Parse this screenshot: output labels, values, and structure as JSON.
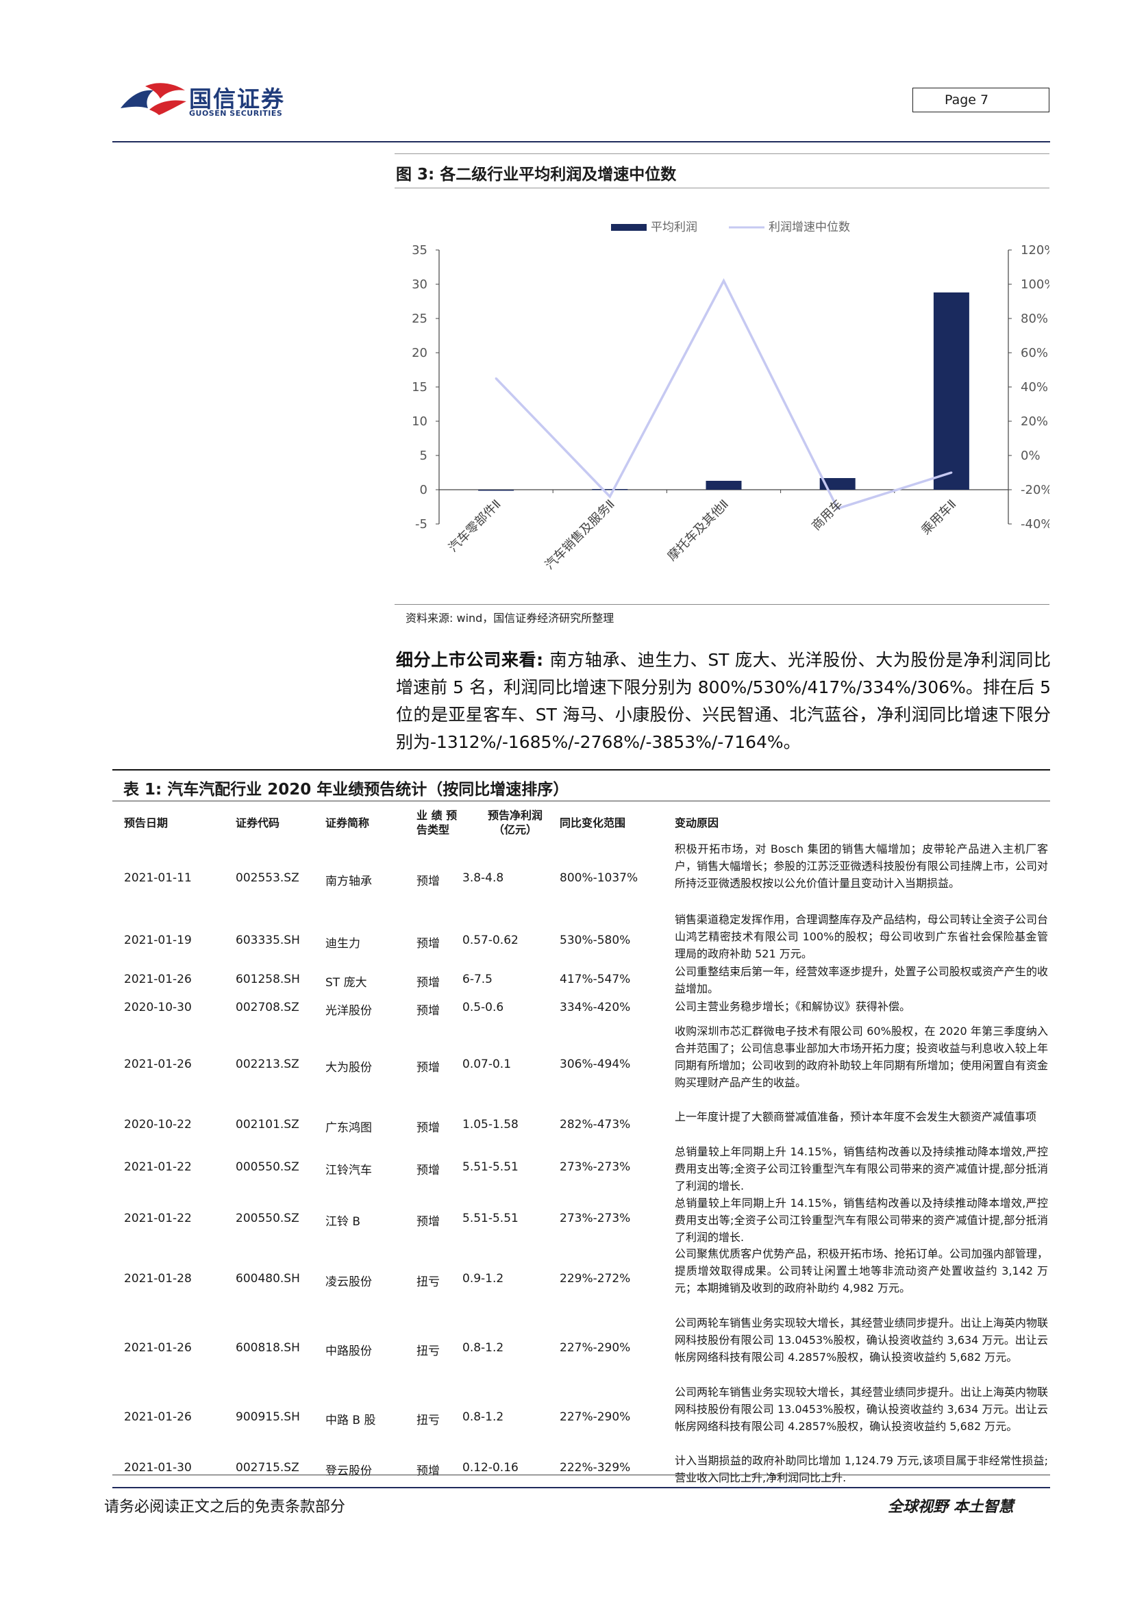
{
  "header": {
    "logo_cn": "国信证券",
    "logo_en": "GUOSEN SECURITIES",
    "page_label": "Page  7"
  },
  "figure": {
    "title": "图 3:  各二级行业平均利润及增速中位数",
    "source": "资料来源: wind，国信证券经济研究所整理"
  },
  "chart_data": {
    "type": "bar",
    "categories": [
      "汽车零部件Ⅱ",
      "汽车销售及服务Ⅱ",
      "摩托车及其他Ⅱ",
      "商用车",
      "乘用车Ⅱ"
    ],
    "series": [
      {
        "name": "平均利润",
        "type": "bar",
        "axis": "left",
        "values": [
          -0.1,
          0.1,
          1.3,
          1.7,
          28.8
        ]
      },
      {
        "name": "利润增速中位数",
        "type": "line",
        "axis": "right",
        "values": [
          0.45,
          -0.24,
          1.02,
          -0.31,
          -0.1
        ]
      }
    ],
    "y_left": {
      "ticks": [
        "35",
        "30",
        "25",
        "20",
        "15",
        "10",
        "5",
        "0",
        "-5"
      ],
      "ylim": [
        -5,
        35
      ]
    },
    "y_right": {
      "ticks": [
        "120%",
        "100%",
        "80%",
        "60%",
        "40%",
        "20%",
        "0%",
        "-20%",
        "-40%"
      ],
      "ylim": [
        -0.4,
        1.2
      ]
    },
    "legend": "top",
    "grid": false,
    "colors": {
      "bar": "#1a2a5e",
      "line": "#c6c9f2"
    }
  },
  "paragraph": {
    "lead": "细分上市公司来看: ",
    "body": "南方轴承、迪生力、ST 庞大、光洋股份、大为股份是净利润同比增速前 5 名，利润同比增速下限分别为 800%/530%/417%/334%/306%。排在后 5 位的是亚星客车、ST 海马、小康股份、兴民智通、北汽蓝谷，净利润同比增速下限分别为-1312%/-1685%/-2768%/-3853%/-7164%。"
  },
  "table": {
    "title": "表 1:  汽车汽配行业 2020 年业绩预告统计（按同比增速排序）",
    "headers": [
      "预告日期",
      "证券代码",
      "证券简称",
      "业 绩 预\n告类型",
      "预告净利润\n（亿元）",
      "同比变化范围",
      "变动原因"
    ],
    "rows": [
      {
        "date": "2021-01-11",
        "code": "002553.SZ",
        "name": "南方轴承",
        "type": "预增",
        "profit": "3.8-4.8",
        "range": "800%-1037%",
        "reason": "积极开拓市场，对 Bosch 集团的销售大幅增加；皮带轮产品进入主机厂客户，销售大幅增长；参股的江苏泛亚微透科技股份有限公司挂牌上市，公司对所持泛亚微透股权按以公允价值计量且变动计入当期损益。"
      },
      {
        "date": "2021-01-19",
        "code": "603335.SH",
        "name": "迪生力",
        "type": "预增",
        "profit": "0.57-0.62",
        "range": "530%-580%",
        "reason": "销售渠道稳定发挥作用，合理调整库存及产品结构，母公司转让全资子公司台山鸿艺精密技术有限公司 100%的股权；母公司收到广东省社会保险基金管理局的政府补助 521 万元。"
      },
      {
        "date": "2021-01-26",
        "code": "601258.SH",
        "name": "ST 庞大",
        "type": "预增",
        "profit": "6-7.5",
        "range": "417%-547%",
        "reason": "公司重整结束后第一年，经营效率逐步提升，处置子公司股权或资产产生的收益增加。"
      },
      {
        "date": "2020-10-30",
        "code": "002708.SZ",
        "name": "光洋股份",
        "type": "预增",
        "profit": "0.5-0.6",
        "range": "334%-420%",
        "reason": "公司主营业务稳步增长；《和解协议》获得补偿。"
      },
      {
        "date": "2021-01-26",
        "code": "002213.SZ",
        "name": "大为股份",
        "type": "预增",
        "profit": "0.07-0.1",
        "range": "306%-494%",
        "reason": "收购深圳市芯汇群微电子技术有限公司 60%股权，在 2020 年第三季度纳入合并范围了；公司信息事业部加大市场开拓力度；投资收益与利息收入较上年同期有所增加；公司收到的政府补助较上年同期有所增加；使用闲置自有资金购买理财产品产生的收益。"
      },
      {
        "date": "2020-10-22",
        "code": "002101.SZ",
        "name": "广东鸿图",
        "type": "预增",
        "profit": "1.05-1.58",
        "range": "282%-473%",
        "reason": "上一年度计提了大额商誉减值准备，预计本年度不会发生大额资产减值事项"
      },
      {
        "date": "2021-01-22",
        "code": "000550.SZ",
        "name": "江铃汽车",
        "type": "预增",
        "profit": "5.51-5.51",
        "range": "273%-273%",
        "reason": "总销量较上年同期上升 14.15%，销售结构改善以及持续推动降本增效,严控费用支出等;全资子公司江铃重型汽车有限公司带来的资产减值计提,部分抵消了利润的增长."
      },
      {
        "date": "2021-01-22",
        "code": "200550.SZ",
        "name": "江铃 B",
        "type": "预增",
        "profit": "5.51-5.51",
        "range": "273%-273%",
        "reason": "总销量较上年同期上升 14.15%，销售结构改善以及持续推动降本增效,严控费用支出等;全资子公司江铃重型汽车有限公司带来的资产减值计提,部分抵消了利润的增长."
      },
      {
        "date": "2021-01-28",
        "code": "600480.SH",
        "name": "凌云股份",
        "type": "扭亏",
        "profit": "0.9-1.2",
        "range": "229%-272%",
        "reason": "公司聚焦优质客户优势产品，积极开拓市场、抢拓订单。公司加强内部管理，提质增效取得成果。公司转让闲置土地等非流动资产处置收益约 3,142 万元；本期摊销及收到的政府补助约 4,982 万元。"
      },
      {
        "date": "2021-01-26",
        "code": "600818.SH",
        "name": "中路股份",
        "type": "扭亏",
        "profit": "0.8-1.2",
        "range": "227%-290%",
        "reason": "公司两轮车销售业务实现较大增长，其经营业绩同步提升。出让上海英内物联网科技股份有限公司 13.0453%股权，确认投资收益约 3,634 万元。出让云帐房网络科技有限公司 4.2857%股权，确认投资收益约 5,682 万元。"
      },
      {
        "date": "2021-01-26",
        "code": "900915.SH",
        "name": "中路 B 股",
        "type": "扭亏",
        "profit": "0.8-1.2",
        "range": "227%-290%",
        "reason": "公司两轮车销售业务实现较大增长，其经营业绩同步提升。出让上海英内物联网科技股份有限公司 13.0453%股权，确认投资收益约 3,634 万元。出让云帐房网络科技有限公司 4.2857%股权，确认投资收益约 5,682 万元。"
      },
      {
        "date": "2021-01-30",
        "code": "002715.SZ",
        "name": "登云股份",
        "type": "预增",
        "profit": "0.12-0.16",
        "range": "222%-329%",
        "reason": "计入当期损益的政府补助同比增加 1,124.79 万元,该项目属于非经常性损益;营业收入同比上升,净利润同比上升."
      }
    ]
  },
  "footer": {
    "left": "请务必阅读正文之后的免责条款部分",
    "right": "全球视野   本土智慧"
  }
}
